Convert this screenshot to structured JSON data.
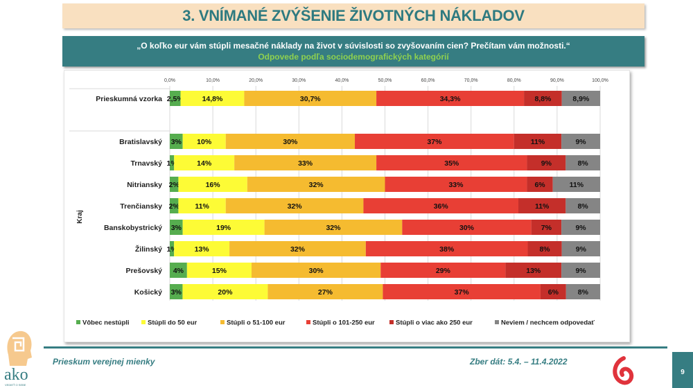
{
  "header": {
    "title": "3. VNÍMANÉ ZVÝŠENIE ŽIVOTNÝCH NÁKLADOV",
    "question": "„O koľko eur vám stúpli mesačné náklady na život v súvislosti so zvyšovaním cien? Prečítam vám možnosti.“",
    "subtitle_highlight": "Odpovede",
    "subtitle_rest": " podľa sociodemografických kategórií"
  },
  "chart_data": {
    "type": "bar",
    "orientation": "horizontal",
    "stacked": "100%",
    "xlim": [
      0,
      100
    ],
    "x_ticks": [
      "0,0%",
      "10,0%",
      "20,0%",
      "30,0%",
      "40,0%",
      "50,0%",
      "60,0%",
      "70,0%",
      "80,0%",
      "90,0%",
      "100,0%"
    ],
    "grid": true,
    "group_label": "Kraj",
    "legend_position": "bottom",
    "series": [
      {
        "name": "Vôbec nestúpli",
        "color": "#56ad4f"
      },
      {
        "name": "Stúpli do 50 eur",
        "color": "#fdfb36"
      },
      {
        "name": "Stúpli o 51-100 eur",
        "color": "#f5bb30"
      },
      {
        "name": "Stúpli o 101-250 eur",
        "color": "#e83f35"
      },
      {
        "name": "Stúpli o viac ako 250 eur",
        "color": "#c42f2a"
      },
      {
        "name": "Neviem / nechcem odpovedať",
        "color": "#858585"
      }
    ],
    "rows": [
      {
        "label": "Prieskumná vzorka",
        "values": [
          2.5,
          14.8,
          30.7,
          34.3,
          8.8,
          8.9
        ],
        "labels": [
          "2,5%",
          "14,8%",
          "30,7%",
          "34,3%",
          "8,8%",
          "8,9%"
        ]
      },
      {
        "label": "Bratislavský",
        "values": [
          3,
          10,
          30,
          37,
          11,
          9
        ],
        "labels": [
          "3%",
          "10%",
          "30%",
          "37%",
          "11%",
          "9%"
        ]
      },
      {
        "label": "Trnavský",
        "values": [
          1,
          14,
          33,
          35,
          9,
          8
        ],
        "labels": [
          "1%",
          "14%",
          "33%",
          "35%",
          "9%",
          "8%"
        ]
      },
      {
        "label": "Nitriansky",
        "values": [
          2,
          16,
          32,
          33,
          6,
          11
        ],
        "labels": [
          "2%",
          "16%",
          "32%",
          "33%",
          "6%",
          "11%"
        ]
      },
      {
        "label": "Trenčiansky",
        "values": [
          2,
          11,
          32,
          36,
          11,
          8
        ],
        "labels": [
          "2%",
          "11%",
          "32%",
          "36%",
          "11%",
          "8%"
        ]
      },
      {
        "label": "Banskobystrický",
        "values": [
          3,
          19,
          32,
          30,
          7,
          9
        ],
        "labels": [
          "3%",
          "19%",
          "32%",
          "30%",
          "7%",
          "9%"
        ]
      },
      {
        "label": "Žilinský",
        "values": [
          1,
          13,
          32,
          38,
          8,
          9
        ],
        "labels": [
          "1%",
          "13%",
          "32%",
          "38%",
          "8%",
          "9%"
        ]
      },
      {
        "label": "Prešovský",
        "values": [
          4,
          15,
          30,
          29,
          13,
          9
        ],
        "labels": [
          "4%",
          "15%",
          "30%",
          "29%",
          "13%",
          "9%"
        ]
      },
      {
        "label": "Košický",
        "values": [
          3,
          20,
          27,
          37,
          6,
          8
        ],
        "labels": [
          "3%",
          "20%",
          "27%",
          "37%",
          "6%",
          "8%"
        ]
      }
    ]
  },
  "footer": {
    "survey_name": "Prieskum verejnej mienky",
    "collection_date": "Zber dát: 5.4. – 11.4.2022",
    "page_number": "9",
    "logo_text": "ako",
    "logo_tagline": "VEDIEŤ O SEBE"
  }
}
